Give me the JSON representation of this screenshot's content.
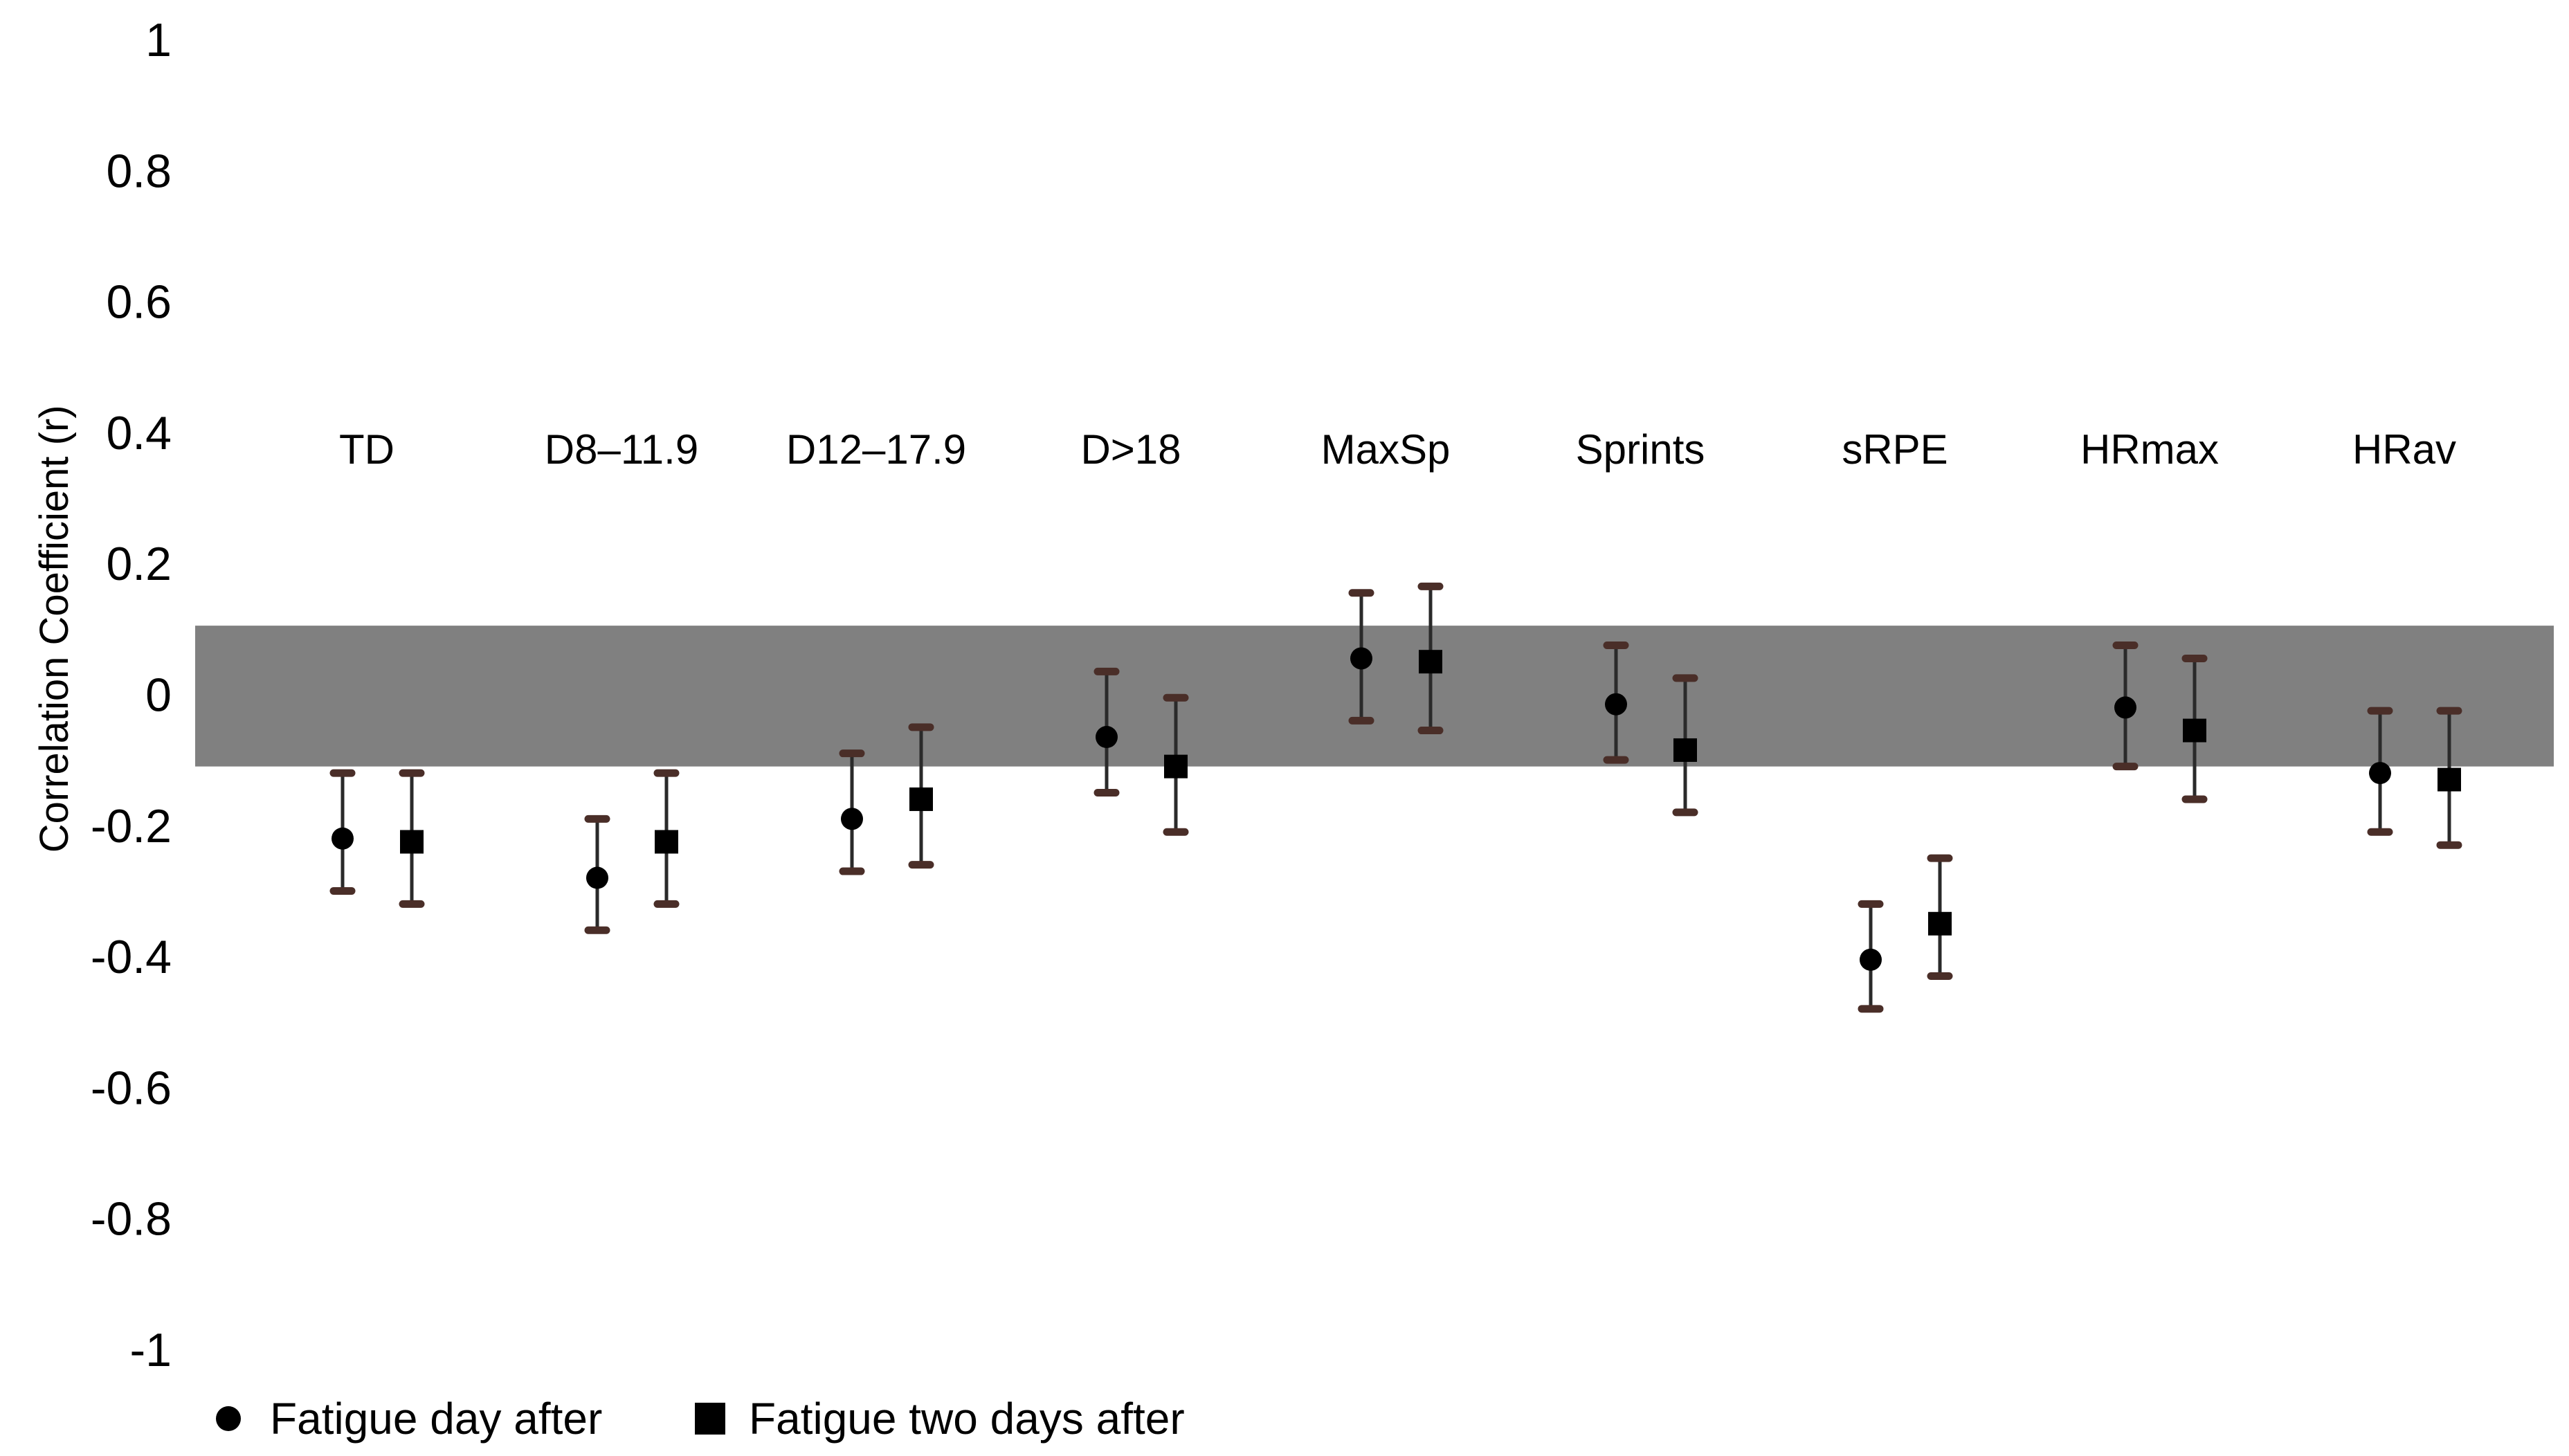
{
  "chart_data": {
    "type": "scatter",
    "title": "",
    "xlabel": "",
    "ylabel": "Correlation Coefficient (r)",
    "ylim": [
      -1,
      1
    ],
    "yticks": [
      "1",
      "0.8",
      "0.6",
      "0.4",
      "0.2",
      "0",
      "-0.2",
      "-0.4",
      "-0.6",
      "-0.8",
      "-1"
    ],
    "grid": false,
    "legend_position": "bottom-left",
    "shaded_band": {
      "from": -0.11,
      "to": 0.105,
      "color": "#808080"
    },
    "categories": [
      "TD",
      "D8–11.9",
      "D12–17.9",
      "D>18",
      "MaxSp",
      "Sprints",
      "sRPE",
      "HRmax",
      "HRav"
    ],
    "series": [
      {
        "name": "Fatigue day after",
        "marker": "circle",
        "values": [
          -0.22,
          -0.28,
          -0.19,
          -0.065,
          0.055,
          -0.015,
          -0.405,
          -0.02,
          -0.12
        ],
        "lower": [
          -0.3,
          -0.36,
          -0.27,
          -0.15,
          -0.04,
          -0.1,
          -0.48,
          -0.11,
          -0.21
        ],
        "upper": [
          -0.12,
          -0.19,
          -0.09,
          0.035,
          0.155,
          0.075,
          -0.32,
          0.075,
          -0.025
        ]
      },
      {
        "name": "Fatigue two days after",
        "marker": "square",
        "values": [
          -0.225,
          -0.225,
          -0.16,
          -0.11,
          0.05,
          -0.085,
          -0.35,
          -0.055,
          -0.13
        ],
        "lower": [
          -0.32,
          -0.32,
          -0.26,
          -0.21,
          -0.055,
          -0.18,
          -0.43,
          -0.16,
          -0.23
        ],
        "upper": [
          -0.12,
          -0.12,
          -0.05,
          -0.005,
          0.165,
          0.025,
          -0.25,
          0.055,
          -0.025
        ]
      }
    ]
  }
}
